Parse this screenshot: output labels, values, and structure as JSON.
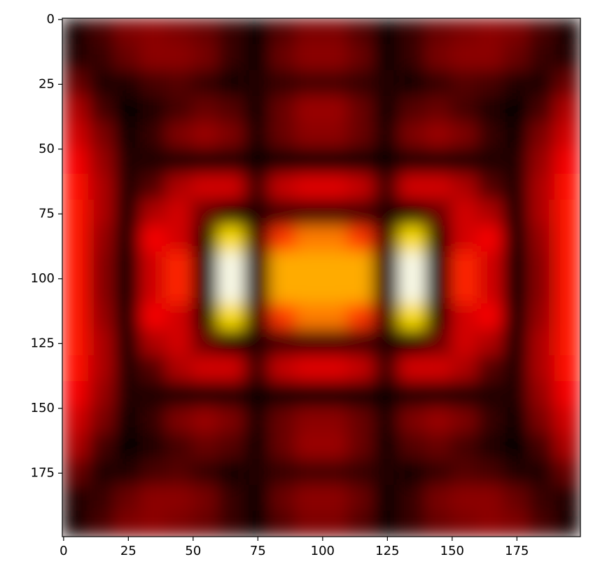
{
  "chart_data": {
    "type": "heatmap",
    "cmap": "hot",
    "clim": [
      0,
      1
    ],
    "x": [
      4.5,
      14.5,
      24.5,
      34.5,
      44.5,
      54.5,
      64.5,
      74.5,
      84.5,
      94.5,
      104.5,
      114.5,
      124.5,
      134.5,
      144.5,
      154.5,
      164.5,
      174.5,
      184.5,
      194.5
    ],
    "y": [
      4.5,
      14.5,
      24.5,
      34.5,
      44.5,
      54.5,
      64.5,
      74.5,
      84.5,
      94.5,
      104.5,
      114.5,
      124.5,
      134.5,
      144.5,
      154.5,
      164.5,
      174.5,
      184.5,
      194.5
    ],
    "values": [
      [
        0.03,
        0.1,
        0.18,
        0.2,
        0.18,
        0.15,
        0.08,
        0.02,
        0.12,
        0.18,
        0.18,
        0.12,
        0.02,
        0.08,
        0.15,
        0.18,
        0.2,
        0.18,
        0.1,
        0.03
      ],
      [
        0.05,
        0.08,
        0.15,
        0.2,
        0.2,
        0.17,
        0.08,
        0.02,
        0.15,
        0.2,
        0.2,
        0.15,
        0.02,
        0.08,
        0.17,
        0.2,
        0.2,
        0.15,
        0.08,
        0.05
      ],
      [
        0.15,
        0.05,
        0.05,
        0.1,
        0.12,
        0.08,
        0.03,
        0.05,
        0.08,
        0.1,
        0.1,
        0.08,
        0.05,
        0.03,
        0.08,
        0.12,
        0.1,
        0.05,
        0.05,
        0.15
      ],
      [
        0.25,
        0.1,
        0.0,
        0.05,
        0.1,
        0.15,
        0.12,
        0.03,
        0.15,
        0.22,
        0.22,
        0.15,
        0.03,
        0.12,
        0.15,
        0.1,
        0.05,
        0.0,
        0.1,
        0.25
      ],
      [
        0.3,
        0.18,
        0.02,
        0.08,
        0.18,
        0.22,
        0.18,
        0.05,
        0.15,
        0.2,
        0.2,
        0.15,
        0.05,
        0.18,
        0.22,
        0.18,
        0.08,
        0.02,
        0.18,
        0.3
      ],
      [
        0.35,
        0.22,
        0.05,
        0.05,
        0.05,
        0.05,
        0.05,
        0.02,
        0.03,
        0.03,
        0.03,
        0.03,
        0.02,
        0.05,
        0.05,
        0.05,
        0.05,
        0.05,
        0.22,
        0.35
      ],
      [
        0.38,
        0.25,
        0.05,
        0.12,
        0.25,
        0.3,
        0.3,
        0.1,
        0.28,
        0.32,
        0.32,
        0.28,
        0.1,
        0.3,
        0.3,
        0.25,
        0.12,
        0.05,
        0.25,
        0.38
      ],
      [
        0.4,
        0.25,
        0.03,
        0.25,
        0.3,
        0.15,
        0.05,
        0.05,
        0.1,
        0.1,
        0.1,
        0.1,
        0.05,
        0.05,
        0.15,
        0.3,
        0.25,
        0.03,
        0.25,
        0.4
      ],
      [
        0.4,
        0.22,
        0.02,
        0.35,
        0.3,
        0.05,
        0.7,
        0.1,
        0.45,
        0.55,
        0.55,
        0.45,
        0.1,
        0.7,
        0.05,
        0.3,
        0.35,
        0.02,
        0.22,
        0.4
      ],
      [
        0.4,
        0.2,
        0.0,
        0.3,
        0.42,
        0.02,
        0.98,
        0.05,
        0.62,
        0.62,
        0.62,
        0.62,
        0.05,
        0.98,
        0.02,
        0.42,
        0.3,
        0.0,
        0.2,
        0.4
      ],
      [
        0.4,
        0.2,
        0.0,
        0.3,
        0.42,
        0.02,
        0.98,
        0.05,
        0.62,
        0.62,
        0.62,
        0.62,
        0.05,
        0.98,
        0.02,
        0.42,
        0.3,
        0.0,
        0.2,
        0.4
      ],
      [
        0.4,
        0.22,
        0.02,
        0.35,
        0.3,
        0.05,
        0.7,
        0.1,
        0.45,
        0.55,
        0.55,
        0.45,
        0.1,
        0.7,
        0.05,
        0.3,
        0.35,
        0.02,
        0.22,
        0.4
      ],
      [
        0.4,
        0.25,
        0.03,
        0.25,
        0.3,
        0.15,
        0.05,
        0.05,
        0.1,
        0.1,
        0.1,
        0.1,
        0.05,
        0.05,
        0.15,
        0.3,
        0.25,
        0.03,
        0.25,
        0.4
      ],
      [
        0.38,
        0.25,
        0.05,
        0.12,
        0.25,
        0.3,
        0.3,
        0.1,
        0.28,
        0.32,
        0.32,
        0.28,
        0.1,
        0.3,
        0.3,
        0.25,
        0.12,
        0.05,
        0.25,
        0.38
      ],
      [
        0.35,
        0.22,
        0.05,
        0.05,
        0.05,
        0.05,
        0.05,
        0.02,
        0.03,
        0.03,
        0.03,
        0.03,
        0.02,
        0.05,
        0.05,
        0.05,
        0.05,
        0.05,
        0.22,
        0.35
      ],
      [
        0.3,
        0.18,
        0.02,
        0.08,
        0.18,
        0.22,
        0.18,
        0.05,
        0.15,
        0.2,
        0.2,
        0.15,
        0.05,
        0.18,
        0.22,
        0.18,
        0.08,
        0.02,
        0.18,
        0.3
      ],
      [
        0.25,
        0.1,
        0.0,
        0.05,
        0.1,
        0.15,
        0.12,
        0.03,
        0.15,
        0.22,
        0.22,
        0.15,
        0.03,
        0.12,
        0.15,
        0.1,
        0.05,
        0.0,
        0.1,
        0.25
      ],
      [
        0.15,
        0.05,
        0.05,
        0.1,
        0.12,
        0.08,
        0.03,
        0.05,
        0.08,
        0.1,
        0.1,
        0.08,
        0.05,
        0.03,
        0.08,
        0.12,
        0.1,
        0.05,
        0.05,
        0.15
      ],
      [
        0.05,
        0.08,
        0.15,
        0.2,
        0.2,
        0.17,
        0.08,
        0.02,
        0.15,
        0.2,
        0.2,
        0.15,
        0.02,
        0.08,
        0.17,
        0.2,
        0.2,
        0.15,
        0.08,
        0.05
      ],
      [
        0.03,
        0.1,
        0.18,
        0.2,
        0.18,
        0.15,
        0.08,
        0.02,
        0.12,
        0.18,
        0.18,
        0.12,
        0.02,
        0.08,
        0.15,
        0.18,
        0.2,
        0.18,
        0.1,
        0.03
      ]
    ],
    "xlim": [
      -0.5,
      199.5
    ],
    "ylim": [
      199.5,
      -0.5
    ],
    "xticks": [
      0,
      25,
      50,
      75,
      100,
      125,
      150,
      175
    ],
    "yticks": [
      0,
      25,
      50,
      75,
      100,
      125,
      150,
      175
    ]
  }
}
